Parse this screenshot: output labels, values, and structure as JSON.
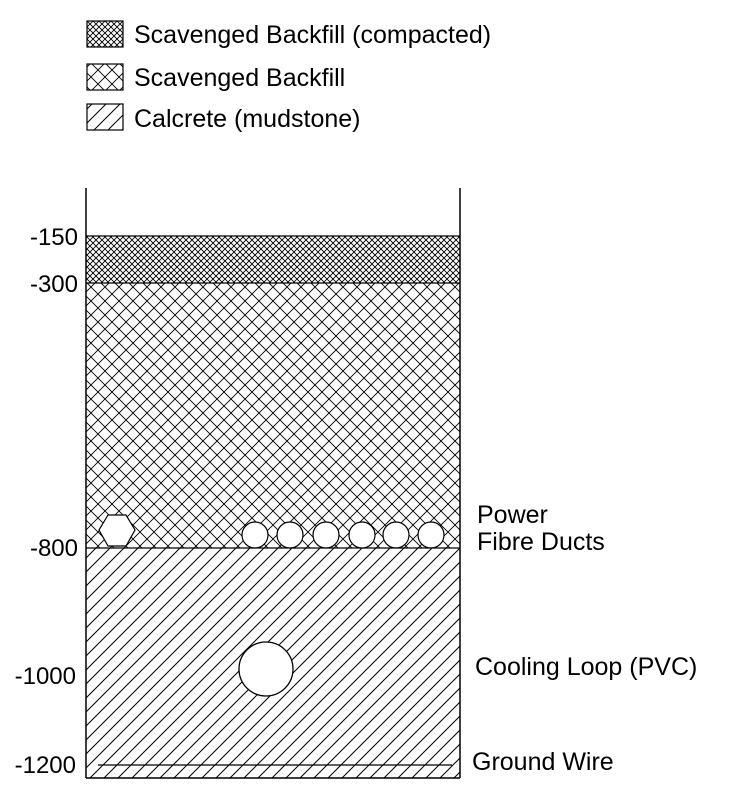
{
  "legend": [
    {
      "key": "compacted",
      "label": "Scavenged Backfill (compacted)"
    },
    {
      "key": "backfill",
      "label": "Scavenged Backfill"
    },
    {
      "key": "calcrete",
      "label": "Calcrete (mudstone)"
    }
  ],
  "depth_labels": [
    "-150",
    "-300",
    "-800",
    "-1000",
    "-1200"
  ],
  "annotations": {
    "power": "Power",
    "fibre_ducts": "Fibre Ducts",
    "cooling_loop": "Cooling Loop (PVC)",
    "ground_wire": "Ground Wire"
  },
  "colors": {
    "line": "#000000",
    "fill": "#ffffff"
  }
}
